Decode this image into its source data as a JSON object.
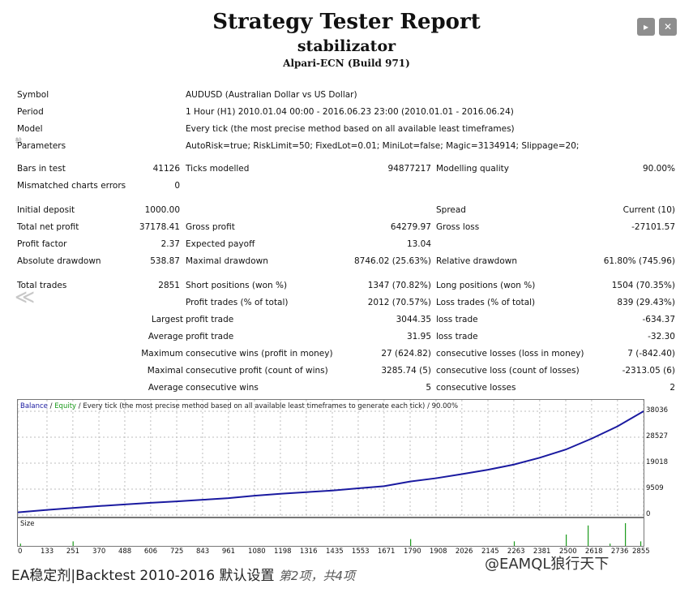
{
  "report": {
    "title": "Strategy Tester Report",
    "ea_name": "stabilizator",
    "broker": "Alpari-ECN (Build 971)"
  },
  "info": [
    {
      "label": "Symbol",
      "value": "AUDUSD (Australian Dollar vs US Dollar)"
    },
    {
      "label": "Period",
      "value": "1 Hour (H1) 2010.01.04 00:00 - 2016.06.23 23:00 (2010.01.01 - 2016.06.24)"
    },
    {
      "label": "Model",
      "value": "Every tick (the most precise method based on all available least timeframes)"
    },
    {
      "label": "Parameters",
      "value": "AutoRisk=true; RiskLimit=50; FixedLot=0.01; MiniLot=false; Magic=3134914; Slippage=20;"
    }
  ],
  "bars": {
    "bars_label": "Bars in test",
    "bars_value": "41126",
    "ticks_label": "Ticks modelled",
    "ticks_value": "94877217",
    "quality_label": "Modelling quality",
    "quality_value": "90.00%",
    "mismatch_label": "Mismatched charts errors",
    "mismatch_value": "0"
  },
  "money": {
    "deposit_label": "Initial deposit",
    "deposit_value": "1000.00",
    "spread_label": "Spread",
    "spread_value": "Current (10)",
    "net_label": "Total net profit",
    "net_value": "37178.41",
    "gross_profit_label": "Gross profit",
    "gross_profit_value": "64279.97",
    "gross_loss_label": "Gross loss",
    "gross_loss_value": "-27101.57",
    "pf_label": "Profit factor",
    "pf_value": "2.37",
    "exp_label": "Expected payoff",
    "exp_value": "13.04",
    "abs_dd_label": "Absolute drawdown",
    "abs_dd_value": "538.87",
    "max_dd_label": "Maximal drawdown",
    "max_dd_value": "8746.02 (25.63%)",
    "rel_dd_label": "Relative drawdown",
    "rel_dd_value": "61.80% (745.96)"
  },
  "trades": {
    "total_label": "Total trades",
    "total_value": "2851",
    "short_label": "Short positions (won %)",
    "short_value": "1347 (70.82%)",
    "long_label": "Long positions (won %)",
    "long_value": "1504 (70.35%)",
    "profit_trades_label": "Profit trades (% of total)",
    "profit_trades_value": "2012 (70.57%)",
    "loss_trades_label": "Loss trades (% of total)",
    "loss_trades_value": "839 (29.43%)",
    "largest_label": "Largest",
    "largest_pt_label": "profit trade",
    "largest_pt_value": "3044.35",
    "largest_lt_label": "loss trade",
    "largest_lt_value": "-634.37",
    "average_label": "Average",
    "average_pt_label": "profit trade",
    "average_pt_value": "31.95",
    "average_lt_label": "loss trade",
    "average_lt_value": "-32.30",
    "maximum_label": "Maximum",
    "max_cw_label": "consecutive wins (profit in money)",
    "max_cw_value": "27 (624.82)",
    "max_cl_label": "consecutive losses (loss in money)",
    "max_cl_value": "7 (-842.40)",
    "maximal_label": "Maximal",
    "mx_cp_label": "consecutive profit (count of wins)",
    "mx_cp_value": "3285.74 (5)",
    "mx_cl_label": "consecutive loss (count of losses)",
    "mx_cl_value": "-2313.05 (6)",
    "avg2_label": "Average",
    "avg_cw_label": "consecutive wins",
    "avg_cw_value": "5",
    "avg_cl_label": "consecutive losses",
    "avg_cl_value": "2"
  },
  "chart": {
    "caption_balance": "Balance",
    "caption_sep": " / ",
    "caption_equity": "Equity",
    "caption_rest": " / Every tick (the most precise method based on all available least timeframes to generate each tick) / 90.00%",
    "size_label": "Size",
    "colors": {
      "balance": "#1a1aa0",
      "equity": "#1a9a1a",
      "grid": "#bdbdbd"
    }
  },
  "chart_data": {
    "type": "line",
    "title": "",
    "y_ticks": [
      "38036",
      "28527",
      "19018",
      "9509",
      "0"
    ],
    "x_ticks": [
      "0",
      "133",
      "251",
      "370",
      "488",
      "606",
      "725",
      "843",
      "961",
      "1080",
      "1198",
      "1316",
      "1435",
      "1553",
      "1671",
      "1790",
      "1908",
      "2026",
      "2145",
      "2263",
      "2381",
      "2500",
      "2618",
      "2736",
      "2855"
    ],
    "ylim": [
      0,
      38036
    ],
    "xlim": [
      0,
      2855
    ],
    "series": [
      {
        "name": "Balance",
        "x": [
          0,
          133,
          251,
          370,
          488,
          606,
          725,
          843,
          961,
          1080,
          1198,
          1316,
          1435,
          1553,
          1671,
          1790,
          1908,
          2026,
          2145,
          2263,
          2381,
          2500,
          2618,
          2736,
          2855
        ],
        "values": [
          1000,
          1900,
          2600,
          3300,
          3900,
          4500,
          5000,
          5600,
          6200,
          7100,
          7800,
          8400,
          9000,
          9800,
          10600,
          12300,
          13500,
          15000,
          16600,
          18500,
          21000,
          24000,
          28000,
          32500,
          38036
        ]
      }
    ],
    "size_bars": [
      {
        "x": 10,
        "v": 1
      },
      {
        "x": 250,
        "v": 2
      },
      {
        "x": 1790,
        "v": 3
      },
      {
        "x": 2263,
        "v": 2
      },
      {
        "x": 2500,
        "v": 5
      },
      {
        "x": 2600,
        "v": 9
      },
      {
        "x": 2700,
        "v": 1
      },
      {
        "x": 2770,
        "v": 10
      },
      {
        "x": 2840,
        "v": 2
      }
    ]
  },
  "footer": {
    "left": "EA稳定剂|Backtest 2010-2016 默认设置",
    "page": "第2项，共4项",
    "right": "@EAMQL狼行天下"
  },
  "controls": {
    "next_glyph": "▸",
    "close_glyph": "✕",
    "prev_glyph": "≪",
    "mark": "斡"
  }
}
